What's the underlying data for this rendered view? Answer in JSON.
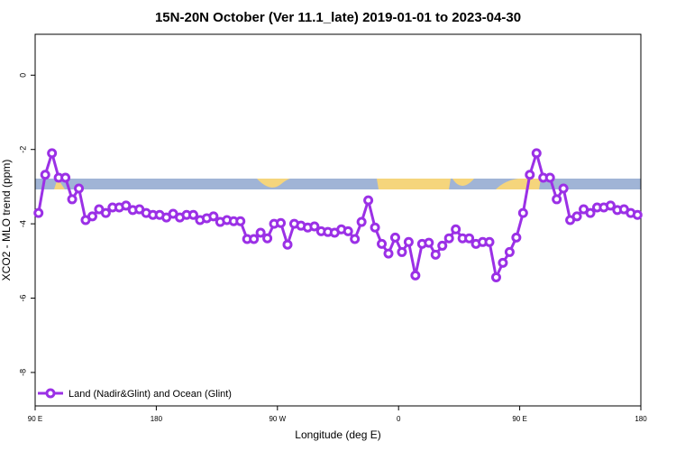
{
  "chart_data": {
    "type": "line",
    "title": "15N-20N October (Ver 11.1_late)   2019-01-01 to 2023-04-30",
    "x_label": "Longitude (deg E)",
    "y_label": "XCO2 - MLO trend (ppm)",
    "x": [
      92.5,
      97.5,
      102.5,
      107.5,
      112.5,
      117.5,
      122.5,
      127.5,
      132.5,
      137.5,
      142.5,
      147.5,
      152.5,
      157.5,
      162.5,
      167.5,
      172.5,
      177.5,
      182.5,
      187.5,
      192.5,
      197.5,
      202.5,
      207.5,
      212.5,
      217.5,
      222.5,
      227.5,
      232.5,
      237.5,
      242.5,
      247.5,
      252.5,
      257.5,
      262.5,
      267.5,
      272.5,
      277.5,
      282.5,
      287.5,
      292.5,
      297.5,
      302.5,
      307.5,
      312.5,
      317.5,
      322.5,
      327.5,
      332.5,
      337.5,
      342.5,
      347.5,
      352.5,
      357.5,
      362.5,
      367.5,
      372.5,
      377.5,
      382.5,
      387.5,
      392.5,
      397.5,
      402.5,
      407.5,
      412.5,
      417.5,
      422.5,
      427.5,
      432.5,
      437.5,
      442.5,
      447.5,
      452.5,
      457.5,
      462.5,
      467.5,
      472.5,
      477.5,
      482.5,
      487.5,
      492.5,
      497.5,
      502.5,
      507.5,
      512.5,
      517.5,
      522.5,
      527.5,
      532.5,
      537.5
    ],
    "series": [
      {
        "name": "Land (Nadir&Glint) and Ocean (Glint)",
        "color": "#9b30e6",
        "values": [
          -3.71,
          -2.68,
          -2.1,
          -2.76,
          -2.76,
          -3.34,
          -3.05,
          -3.9,
          -3.8,
          -3.61,
          -3.71,
          -3.56,
          -3.56,
          -3.51,
          -3.63,
          -3.61,
          -3.71,
          -3.76,
          -3.76,
          -3.83,
          -3.73,
          -3.83,
          -3.76,
          -3.76,
          -3.9,
          -3.85,
          -3.8,
          -3.95,
          -3.9,
          -3.93,
          -3.93,
          -4.41,
          -4.41,
          -4.24,
          -4.39,
          -4.0,
          -3.98,
          -4.56,
          -4.0,
          -4.05,
          -4.1,
          -4.07,
          -4.2,
          -4.22,
          -4.24,
          -4.15,
          -4.2,
          -4.41,
          -3.95,
          -3.37,
          -4.1,
          -4.54,
          -4.8,
          -4.37,
          -4.76,
          -4.49,
          -5.39,
          -4.54,
          -4.51,
          -4.83,
          -4.59,
          -4.39,
          -4.15,
          -4.39,
          -4.39,
          -4.54,
          -4.49,
          -4.49,
          -5.44,
          -5.05,
          -4.76,
          -4.37,
          -3.71,
          -2.68,
          -2.1,
          -2.76,
          -2.76,
          -3.34,
          -3.05,
          -3.9,
          -3.8,
          -3.61,
          -3.71,
          -3.56,
          -3.56,
          -3.51,
          -3.63,
          -3.61,
          -3.71,
          -3.76
        ]
      }
    ],
    "xlim": [
      90,
      540
    ],
    "xticks": [
      {
        "value": 90,
        "label": "90 E"
      },
      180,
      {
        "value": 270,
        "label": "90 W"
      },
      {
        "value": 360,
        "label": "0"
      },
      {
        "value": 450,
        "label": "90 E"
      },
      {
        "value": 540,
        "label": "180"
      }
    ],
    "ylim": [
      -8.9,
      1.1
    ],
    "yticks": [
      0,
      -2,
      -4,
      -6,
      -8
    ],
    "legend": "bottom-left"
  }
}
